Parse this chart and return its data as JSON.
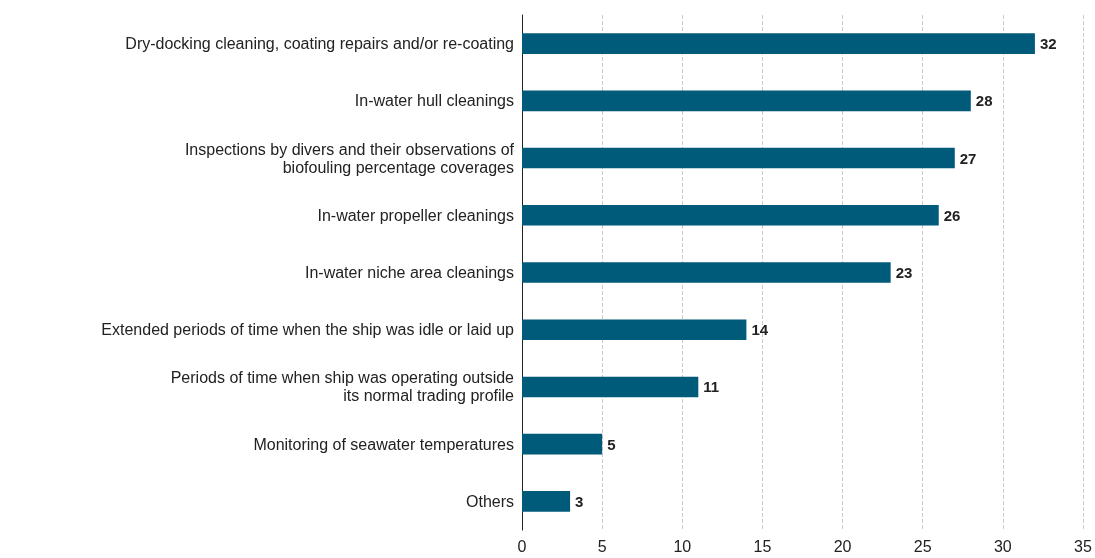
{
  "chart_data": {
    "type": "bar",
    "orientation": "horizontal",
    "categories": [
      "Dry-docking cleaning, coating repairs and/or re-coating",
      "In-water hull cleanings",
      "Inspections by divers and their observations of\nbiofouling percentage coverages",
      "In-water propeller cleanings",
      "In-water niche area cleanings",
      "Extended periods of time when the ship was idle or laid up",
      "Periods of time when ship was operating outside\nits normal trading profile",
      "Monitoring of seawater temperatures",
      "Others"
    ],
    "values": [
      32,
      28,
      27,
      26,
      23,
      14,
      11,
      5,
      3
    ],
    "color": "#005a7a",
    "xlim": [
      0,
      35
    ],
    "xticks": [
      0,
      5,
      10,
      15,
      20,
      25,
      30,
      35
    ],
    "grid": "x",
    "data_labels": true
  }
}
